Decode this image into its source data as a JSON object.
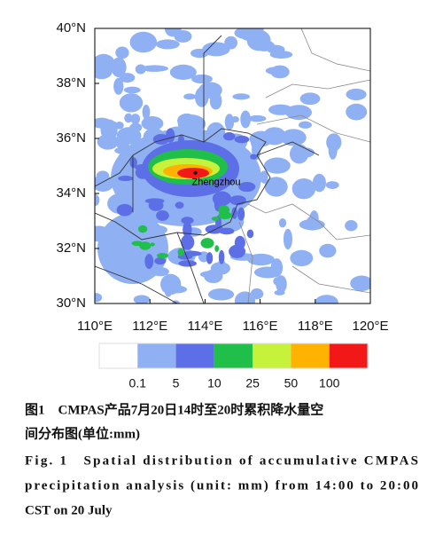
{
  "chart_data": {
    "type": "map",
    "xlim": [
      110,
      120
    ],
    "ylim": [
      30,
      40
    ],
    "xticks": [
      {
        "value": 110,
        "label": "110°E"
      },
      {
        "value": 112,
        "label": "112°E"
      },
      {
        "value": 114,
        "label": "114°E"
      },
      {
        "value": 116,
        "label": "116°E"
      },
      {
        "value": 118,
        "label": "118°E"
      },
      {
        "value": 120,
        "label": "120°E"
      }
    ],
    "yticks": [
      {
        "value": 30,
        "label": "30°N"
      },
      {
        "value": 32,
        "label": "32°N"
      },
      {
        "value": 34,
        "label": "34°N"
      },
      {
        "value": 36,
        "label": "36°N"
      },
      {
        "value": 38,
        "label": "38°N"
      },
      {
        "value": 40,
        "label": "40°N"
      }
    ],
    "city": {
      "name": "Zhengzhou",
      "lon": 113.65,
      "lat": 34.75
    },
    "colorbar": {
      "levels": [
        0.1,
        5,
        10,
        25,
        50,
        100
      ],
      "colors": [
        "#ffffff",
        "#8fb0f2",
        "#5d6fe6",
        "#1fbf4a",
        "#c6f23c",
        "#ffb300",
        "#f21818"
      ]
    }
  },
  "caption": {
    "zh": [
      "图1　CMPAS产品7月20日14时至20时累积降水量空",
      "间分布图(单位:mm)"
    ],
    "en": [
      "Fig. 1　Spatial distribution of accumulative CMPAS",
      "precipitation analysis (unit: mm) from 14:00 to 20:00",
      "CST on 20 July"
    ]
  }
}
